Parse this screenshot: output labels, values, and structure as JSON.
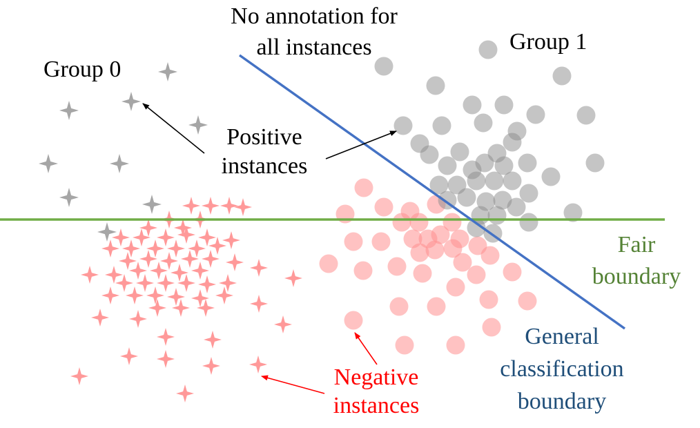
{
  "labels": {
    "no_annotation_line1": "No annotation for",
    "no_annotation_line2": "all instances",
    "group0": "Group 0",
    "group1": "Group 1",
    "positive_line1": "Positive",
    "positive_line2": "instances",
    "negative_line1": "Negative",
    "negative_line2": "instances",
    "fair_line1": "Fair",
    "fair_line2": "boundary",
    "general_line1": "General",
    "general_line2": "classification",
    "general_line3": "boundary"
  },
  "colors": {
    "fair_boundary": "#70ad47",
    "general_boundary": "#4472c4",
    "positive_marker": "#a6a6a6",
    "negative_marker": "#ff9999",
    "negative_text": "#ff0000",
    "fair_text": "#548235",
    "general_text": "#1f4e79",
    "text": "#000000"
  },
  "legend_semantics": {
    "group0_marker": "star",
    "group1_marker": "circle",
    "positive_fill": "gray",
    "negative_fill": "pink"
  }
}
